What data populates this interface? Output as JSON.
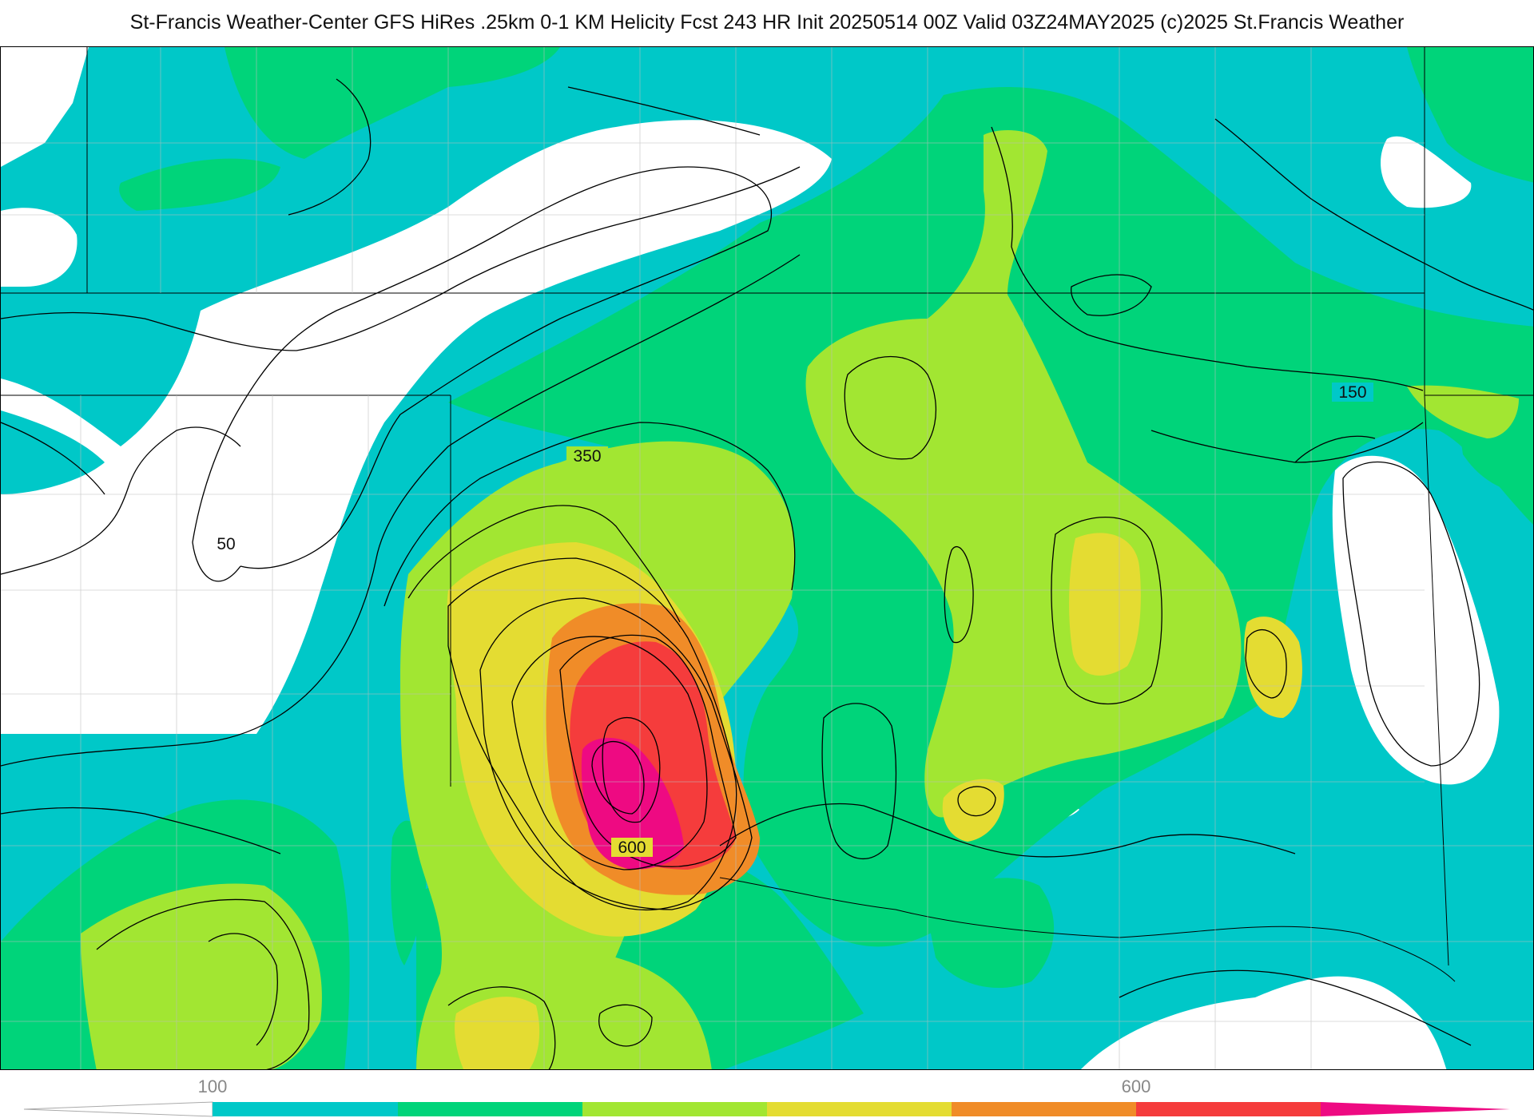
{
  "header": {
    "title": "St-Francis Weather-Center GFS HiRes .25km 0-1 KM Helicity Fcst 243 HR Init 20250514 00Z  Valid 03Z24MAY2025    (c)2025 St.Francis Weather"
  },
  "map": {
    "contour_labels": [
      "50",
      "350",
      "600",
      "150"
    ],
    "fill_colors": {
      "band_50_100": "#ffffff",
      "band_100_150": "#00c8c8",
      "band_150_250": "#00d47a",
      "band_250_350": "#a2e632",
      "band_350_450": "#e4dc32",
      "band_450_550": "#f08c28",
      "band_550_650": "#f53c3c",
      "band_650_plus": "#ee0a82"
    }
  },
  "legend": {
    "tick_labels": [
      "100",
      "600"
    ],
    "colors": [
      "#00c8c8",
      "#00d47a",
      "#a2e632",
      "#e4dc32",
      "#f08c28",
      "#f53c3c",
      "#ee0a82"
    ]
  }
}
